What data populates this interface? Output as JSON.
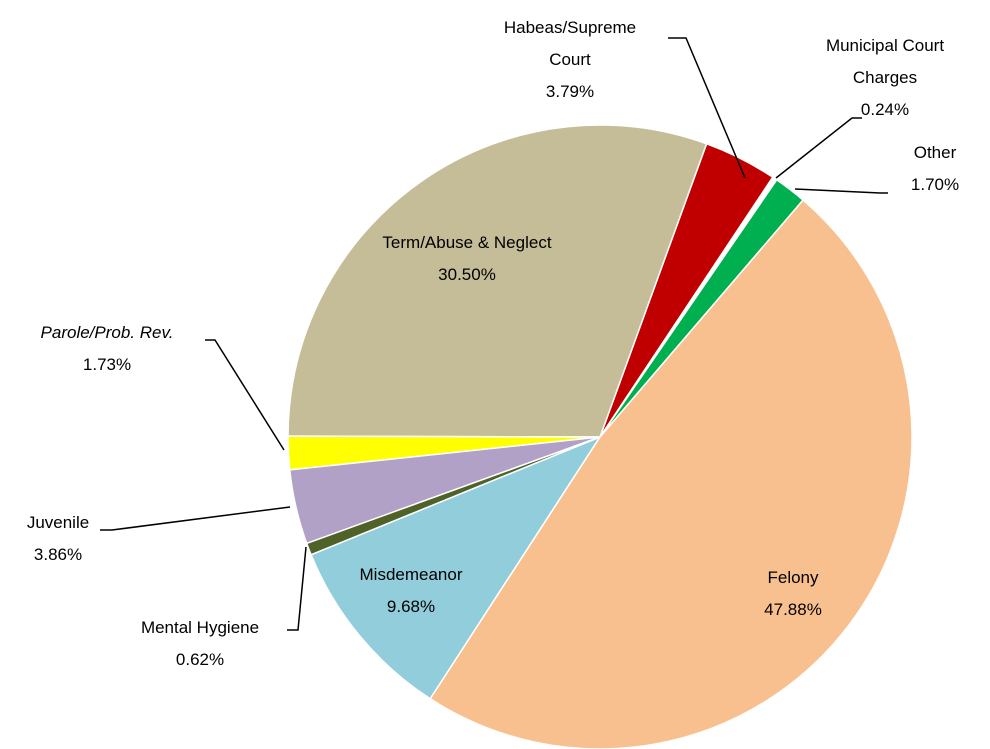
{
  "chart_data": {
    "type": "pie",
    "categories": [
      "Felony",
      "Misdemeanor",
      "Mental Hygiene",
      "Juvenile",
      "Parole/Prob. Rev.",
      "Term/Abuse & Neglect",
      "Habeas/Supreme Court",
      "Municipal Court Charges",
      "Other"
    ],
    "values": [
      47.88,
      9.68,
      0.62,
      3.86,
      1.73,
      30.5,
      3.79,
      0.24,
      1.7
    ],
    "value_labels": [
      "47.88%",
      "9.68%",
      "0.62%",
      "3.86%",
      "1.73%",
      "30.50%",
      "3.79%",
      "0.24%",
      "1.70%"
    ],
    "colors": [
      "#f9c08f",
      "#92cddc",
      "#4f6228",
      "#b2a1c7",
      "#ffff00",
      "#c4bd97",
      "#c00000",
      "#ffffff",
      "#00b050"
    ]
  }
}
